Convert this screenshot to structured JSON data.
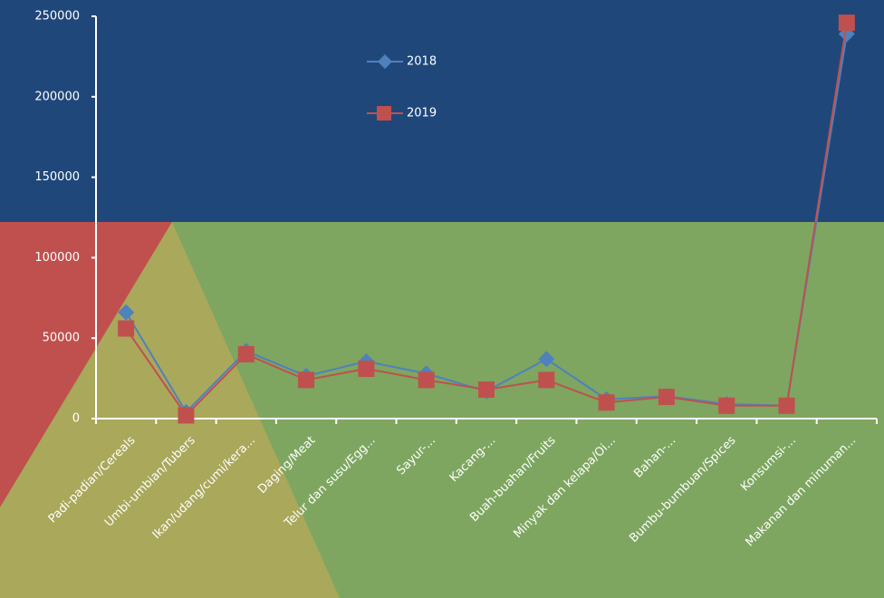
{
  "chart_data": {
    "type": "line",
    "categories": [
      "Padi-padian/Cereals",
      "Umbi-umbian/Tubers",
      "Ikan/udang/cumi/kera...",
      "Daging/Meat",
      "Telur dan susu/Egg...",
      "Sayur-...",
      "Kacang-...",
      "Buah-buahan/Fruits",
      "Minyak dan kelapa/Oi...",
      "Bahan-...",
      "Bumbu-bumbuan/Spices",
      "Konsumsi-...",
      "Makanan dan minuman..."
    ],
    "series": [
      {
        "name": "2018",
        "color": "#4f81bd",
        "marker": "diamond",
        "values": [
          66000,
          4000,
          42000,
          26500,
          35500,
          28000,
          17000,
          37000,
          12000,
          14000,
          9000,
          8000,
          239000
        ]
      },
      {
        "name": "2019",
        "color": "#c0504d",
        "marker": "square",
        "values": [
          56000,
          2000,
          40000,
          24000,
          31000,
          24000,
          18000,
          24000,
          10000,
          13500,
          8000,
          8000,
          246000
        ]
      }
    ],
    "ylim": [
      0,
      250000
    ],
    "yticks": [
      0,
      50000,
      100000,
      150000,
      200000,
      250000
    ]
  }
}
